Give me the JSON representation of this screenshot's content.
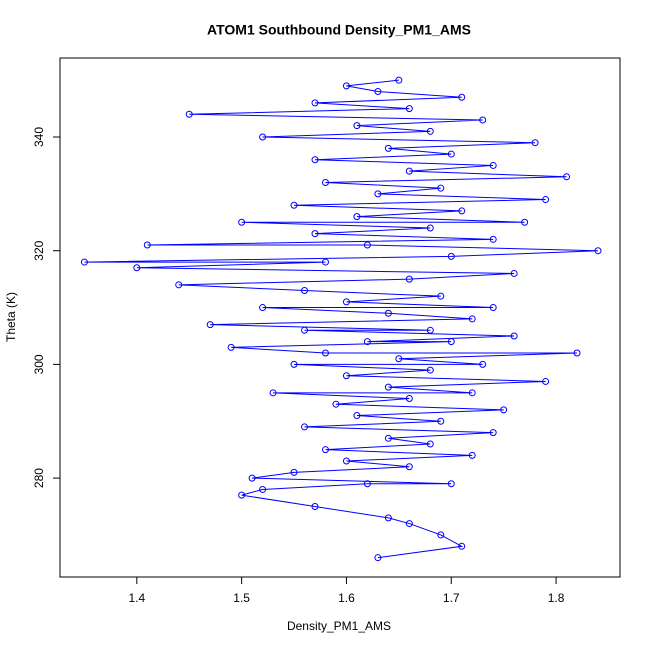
{
  "chart_data": {
    "type": "line",
    "title": "ATOM1 Southbound Density_PM1_AMS",
    "xlabel": "Density_PM1_AMS",
    "ylabel": "Theta (K)",
    "markers": true,
    "x": [
      1.63,
      1.71,
      1.69,
      1.66,
      1.64,
      1.57,
      1.5,
      1.52,
      1.62,
      1.7,
      1.51,
      1.55,
      1.66,
      1.6,
      1.72,
      1.58,
      1.68,
      1.64,
      1.74,
      1.56,
      1.69,
      1.61,
      1.75,
      1.59,
      1.66,
      1.53,
      1.72,
      1.64,
      1.79,
      1.6,
      1.68,
      1.55,
      1.73,
      1.65,
      1.82,
      1.58,
      1.49,
      1.7,
      1.62,
      1.76,
      1.56,
      1.68,
      1.47,
      1.72,
      1.64,
      1.52,
      1.74,
      1.6,
      1.69,
      1.56,
      1.44,
      1.66,
      1.76,
      1.4,
      1.58,
      1.35,
      1.7,
      1.84,
      1.62,
      1.41,
      1.74,
      1.57,
      1.68,
      1.5,
      1.77,
      1.61,
      1.71,
      1.55,
      1.79,
      1.63,
      1.69,
      1.58,
      1.81,
      1.66,
      1.74,
      1.57,
      1.7,
      1.64,
      1.78,
      1.52,
      1.68,
      1.61,
      1.73,
      1.45,
      1.66,
      1.57,
      1.71,
      1.63,
      1.6,
      1.65
    ],
    "series": [
      {
        "color": "#0000ff",
        "values": [
          266,
          268,
          270,
          272,
          273,
          275,
          277,
          278,
          279,
          279,
          280,
          281,
          282,
          283,
          284,
          285,
          286,
          287,
          288,
          289,
          290,
          291,
          292,
          293,
          294,
          295,
          295,
          296,
          297,
          298,
          299,
          300,
          300,
          301,
          302,
          302,
          303,
          304,
          304,
          305,
          306,
          306,
          307,
          308,
          309,
          310,
          310,
          311,
          312,
          313,
          314,
          315,
          316,
          317,
          318,
          318,
          319,
          320,
          321,
          321,
          322,
          323,
          324,
          325,
          325,
          326,
          327,
          328,
          329,
          330,
          331,
          332,
          333,
          334,
          335,
          336,
          337,
          338,
          339,
          340,
          341,
          342,
          343,
          344,
          345,
          346,
          347,
          348,
          349,
          350
        ]
      }
    ],
    "xlim": [
      1.3267,
      1.861
    ],
    "ylim": [
      262.6,
      353.9
    ],
    "xticks": [
      1.4,
      1.5,
      1.6,
      1.7,
      1.8
    ],
    "yticks": [
      280,
      300,
      320,
      340
    ]
  }
}
